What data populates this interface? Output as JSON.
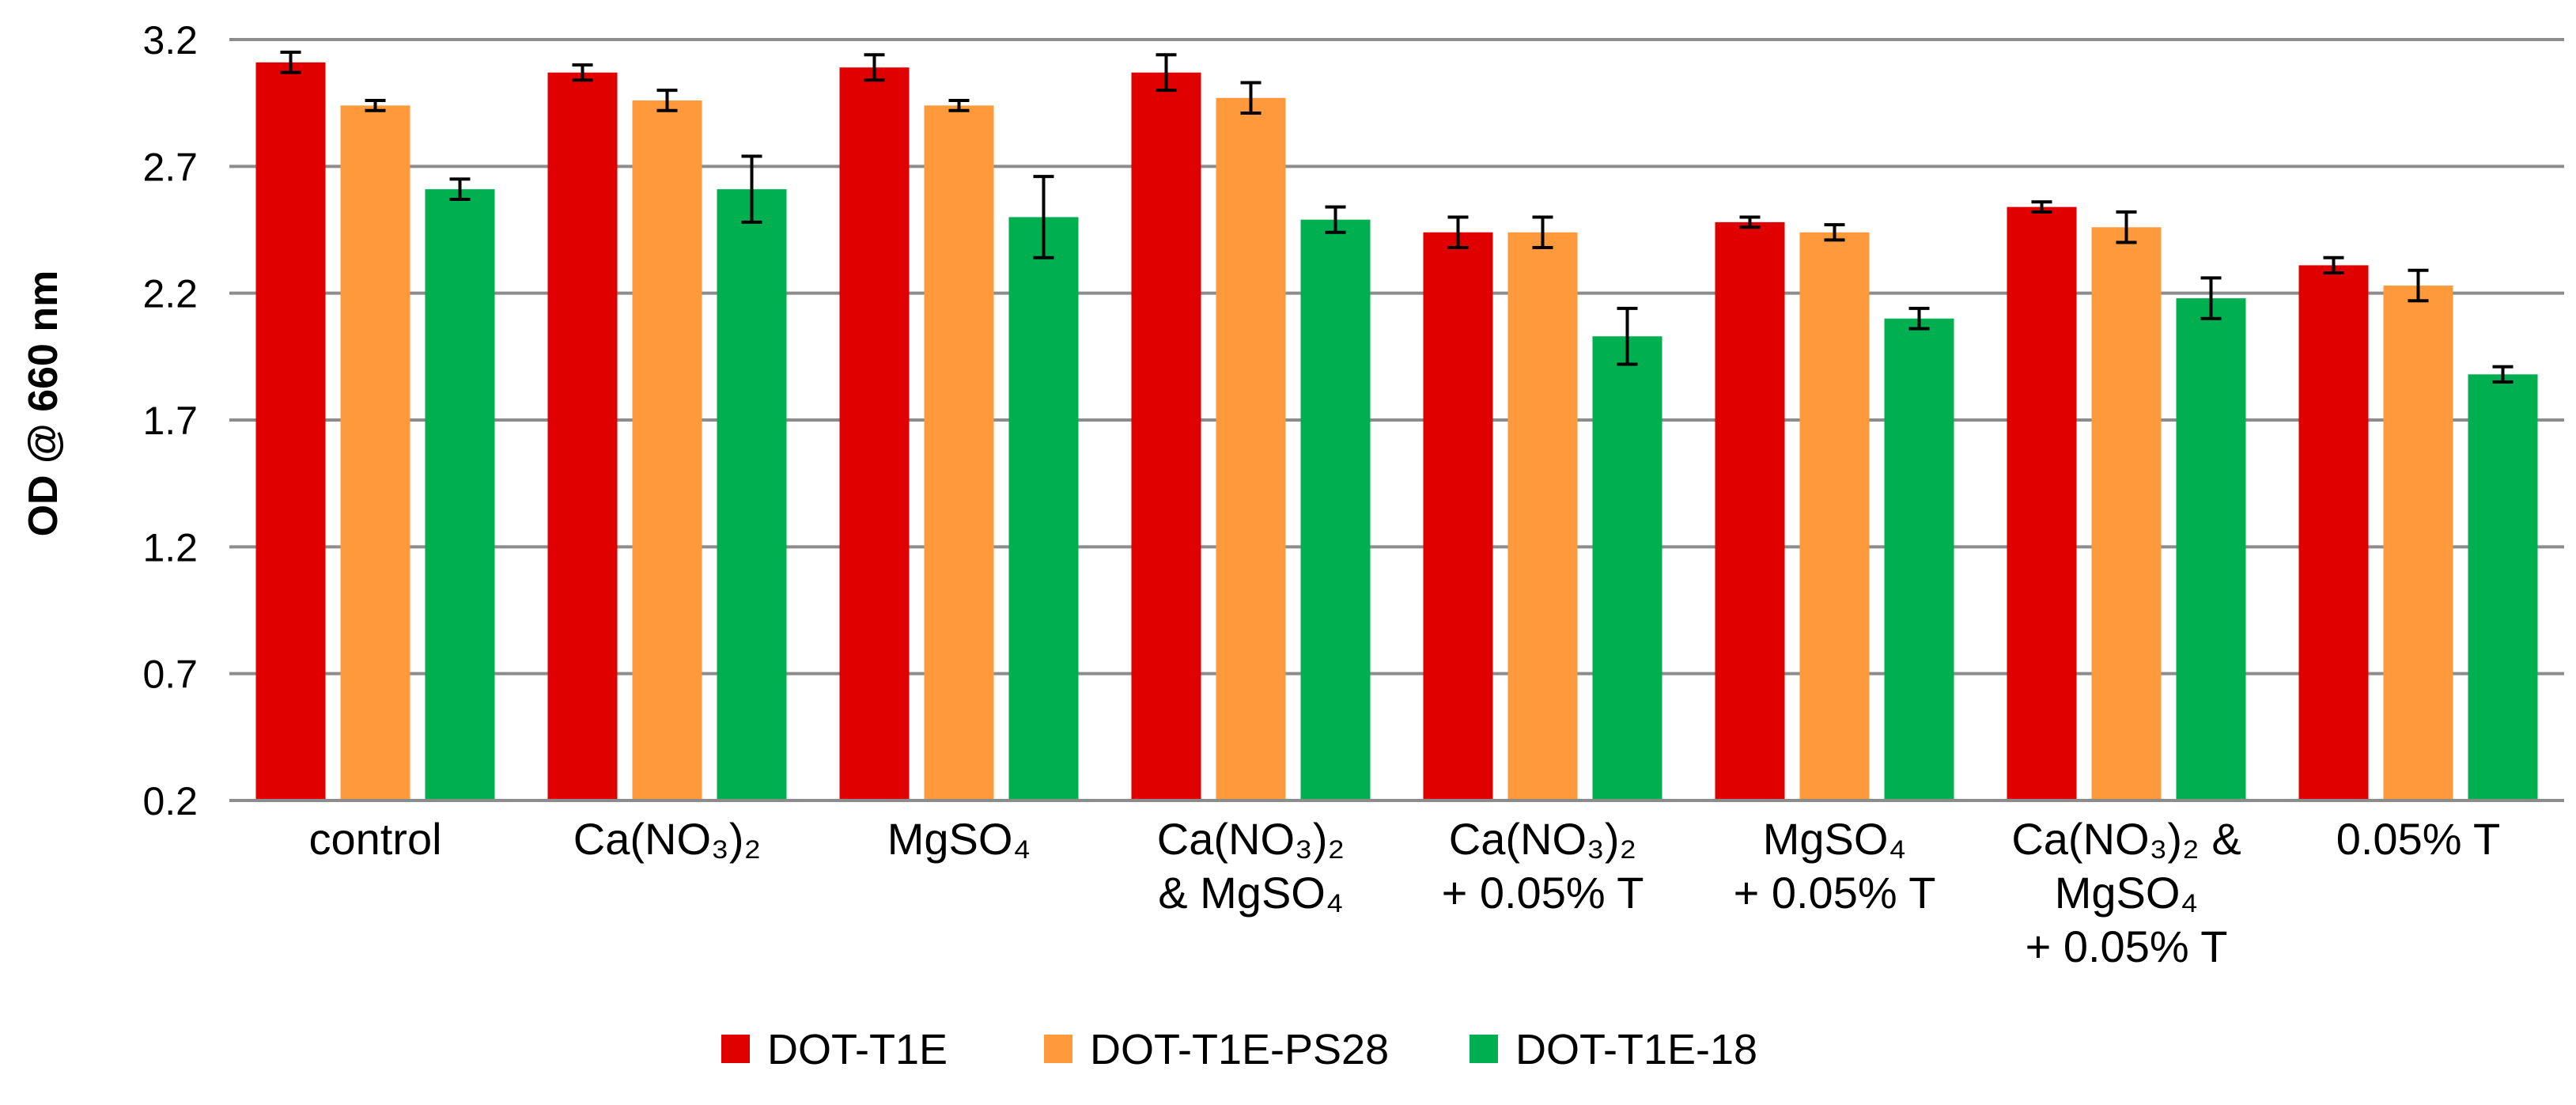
{
  "chart_data": {
    "type": "bar",
    "title": "",
    "xlabel": "",
    "ylabel": "OD @ 660 nm",
    "ylim": [
      0.2,
      3.2
    ],
    "yticks": [
      "0.2",
      "0.7",
      "1.2",
      "1.7",
      "2.2",
      "2.7",
      "3.2"
    ],
    "ytick_values": [
      0.2,
      0.7,
      1.2,
      1.7,
      2.2,
      2.7,
      3.2
    ],
    "grid": true,
    "legend_position": "bottom",
    "categories": [
      [
        "control"
      ],
      [
        "Ca(NO₃)₂"
      ],
      [
        "MgSO₄"
      ],
      [
        "Ca(NO₃)₂",
        "& MgSO₄"
      ],
      [
        "Ca(NO₃)₂",
        "+ 0.05% T"
      ],
      [
        "MgSO₄",
        "+ 0.05% T"
      ],
      [
        "Ca(NO₃)₂ &",
        "MgSO₄",
        "+ 0.05% T"
      ],
      [
        "0.05% T"
      ]
    ],
    "series": [
      {
        "name": "DOT-T1E",
        "color": "#e00000",
        "values": [
          3.11,
          3.07,
          3.09,
          3.07,
          2.44,
          2.48,
          2.54,
          2.31
        ],
        "errors": [
          0.04,
          0.03,
          0.05,
          0.07,
          0.06,
          0.02,
          0.02,
          0.03
        ]
      },
      {
        "name": "DOT-T1E-PS28",
        "color": "#ff9a3c",
        "values": [
          2.94,
          2.96,
          2.94,
          2.97,
          2.44,
          2.44,
          2.46,
          2.23
        ],
        "errors": [
          0.02,
          0.04,
          0.02,
          0.06,
          0.06,
          0.03,
          0.06,
          0.06
        ]
      },
      {
        "name": "DOT-T1E-18",
        "color": "#00b050",
        "values": [
          2.61,
          2.61,
          2.5,
          2.49,
          2.03,
          2.1,
          2.18,
          1.88
        ],
        "errors": [
          0.04,
          0.13,
          0.16,
          0.05,
          0.11,
          0.04,
          0.08,
          0.03
        ]
      }
    ]
  }
}
